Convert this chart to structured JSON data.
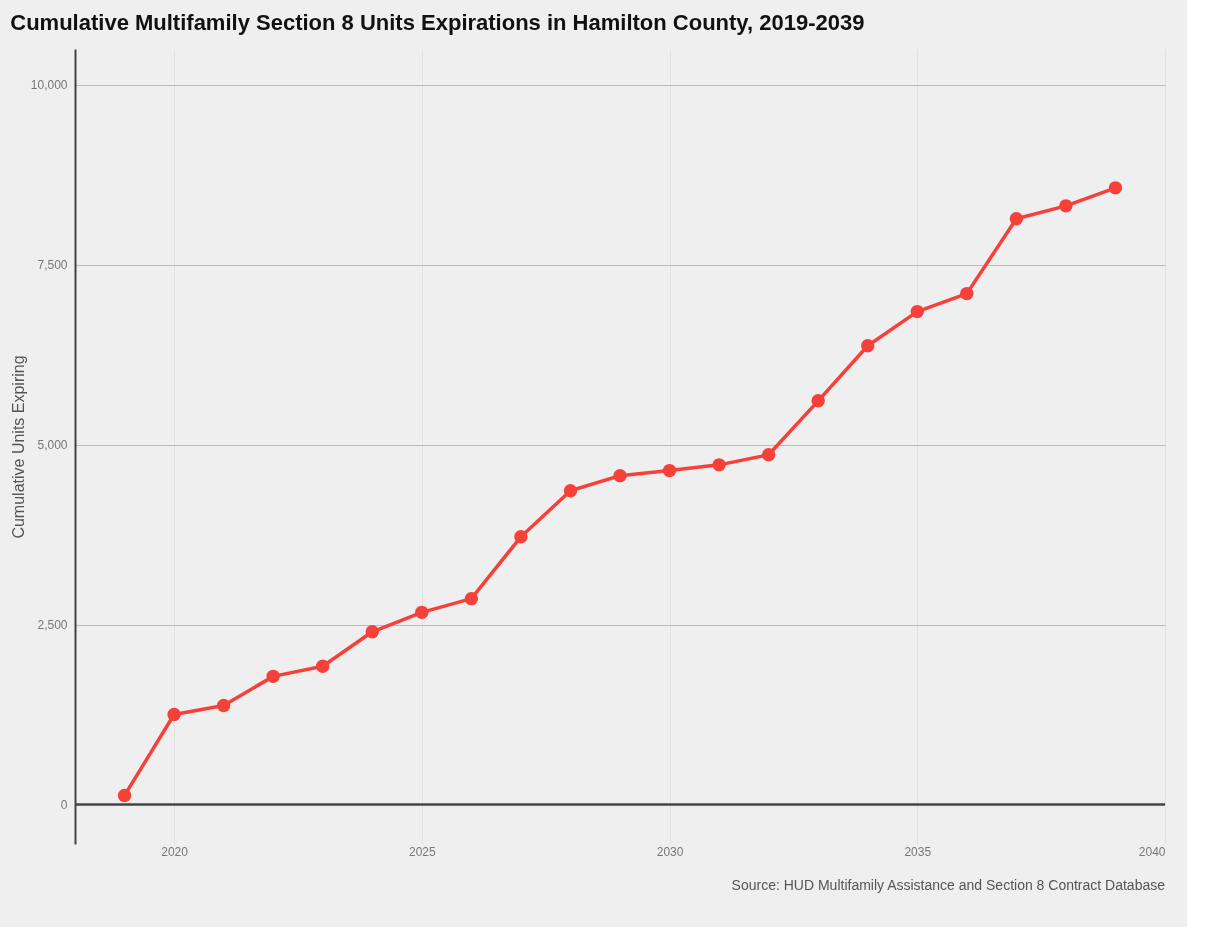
{
  "chart_data": {
    "type": "line",
    "title": "Cumulative Multifamily Section 8 Units Expirations in Hamilton County, 2019-2039",
    "ylabel": "Cumulative Units Expiring",
    "x": [
      2019,
      2020,
      2021,
      2022,
      2023,
      2024,
      2025,
      2026,
      2027,
      2028,
      2029,
      2030,
      2031,
      2032,
      2033,
      2034,
      2035,
      2036,
      2037,
      2038,
      2039
    ],
    "series": [
      {
        "color": "#f5413a",
        "values": [
          125,
          1250,
          1375,
          1780,
          1920,
          2400,
          2670,
          2860,
          3720,
          4360,
          4570,
          4640,
          4720,
          4860,
          5610,
          6375,
          6850,
          7100,
          8140,
          8320,
          8570
        ]
      }
    ],
    "xlim": [
      2018,
      2040
    ],
    "xticks": [
      2020,
      2025,
      2030,
      2035,
      2040
    ],
    "ylim": [
      -550,
      10500
    ],
    "yticks": [
      0,
      {
        "value": 2500,
        "label": "2,500"
      },
      {
        "value": 5000,
        "label": "5,000"
      },
      {
        "value": 7500,
        "label": "7,500"
      },
      {
        "value": 10000,
        "label": "10,000"
      }
    ],
    "grid": true,
    "marker": "circle",
    "line_style": "solid",
    "ref_lines": [
      {
        "axis": "y",
        "value": 0,
        "color": "#444444"
      }
    ],
    "annotations": [
      "Source: HUD Multifamily Assistance and Section 8 Contract Database"
    ]
  }
}
